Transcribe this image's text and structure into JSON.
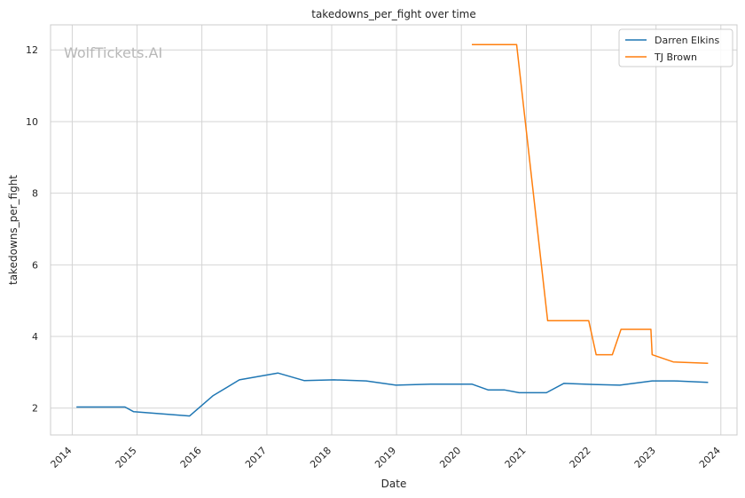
{
  "watermark": "WolfTickets.AI",
  "chart_data": {
    "type": "line",
    "title": "takedowns_per_fight over time",
    "xlabel": "Date",
    "ylabel": "takedowns_per_fight",
    "xlim": [
      "2013-09-01",
      "2024-04-01"
    ],
    "ylim": [
      1.25,
      12.7
    ],
    "x_ticks": [
      "2014-01-01",
      "2015-01-01",
      "2016-01-01",
      "2017-01-01",
      "2018-01-01",
      "2019-01-01",
      "2020-01-01",
      "2021-01-01",
      "2022-01-01",
      "2023-01-01",
      "2024-01-01"
    ],
    "x_tick_labels": [
      "2014",
      "2015",
      "2016",
      "2017",
      "2018",
      "2019",
      "2020",
      "2021",
      "2022",
      "2023",
      "2024"
    ],
    "y_ticks": [
      2,
      4,
      6,
      8,
      10,
      12
    ],
    "grid": true,
    "legend_position": "top-right",
    "series": [
      {
        "name": "Darren Elkins",
        "color": "#1f77b4",
        "points": [
          [
            "2014-01-25",
            2.03
          ],
          [
            "2014-10-25",
            2.03
          ],
          [
            "2014-12-13",
            1.9
          ],
          [
            "2015-10-24",
            1.78
          ],
          [
            "2016-03-05",
            2.35
          ],
          [
            "2016-07-30",
            2.79
          ],
          [
            "2017-03-04",
            2.98
          ],
          [
            "2017-07-29",
            2.77
          ],
          [
            "2018-01-14",
            2.79
          ],
          [
            "2018-07-14",
            2.76
          ],
          [
            "2018-12-29",
            2.64
          ],
          [
            "2019-07-13",
            2.67
          ],
          [
            "2020-02-29",
            2.67
          ],
          [
            "2020-05-30",
            2.51
          ],
          [
            "2020-08-29",
            2.51
          ],
          [
            "2020-11-21",
            2.43
          ],
          [
            "2021-04-24",
            2.43
          ],
          [
            "2021-07-31",
            2.69
          ],
          [
            "2022-01-15",
            2.66
          ],
          [
            "2022-06-11",
            2.64
          ],
          [
            "2022-12-10",
            2.76
          ],
          [
            "2023-04-15",
            2.76
          ],
          [
            "2023-10-21",
            2.72
          ]
        ]
      },
      {
        "name": "TJ Brown",
        "color": "#ff7f0e",
        "points": [
          [
            "2020-02-29",
            12.15
          ],
          [
            "2020-11-07",
            12.15
          ],
          [
            "2021-05-01",
            4.44
          ],
          [
            "2021-12-18",
            4.44
          ],
          [
            "2022-01-29",
            3.49
          ],
          [
            "2022-04-30",
            3.49
          ],
          [
            "2022-06-18",
            4.2
          ],
          [
            "2022-12-03",
            4.2
          ],
          [
            "2022-12-10",
            3.49
          ],
          [
            "2023-04-08",
            3.29
          ],
          [
            "2023-10-21",
            3.25
          ]
        ]
      }
    ]
  }
}
